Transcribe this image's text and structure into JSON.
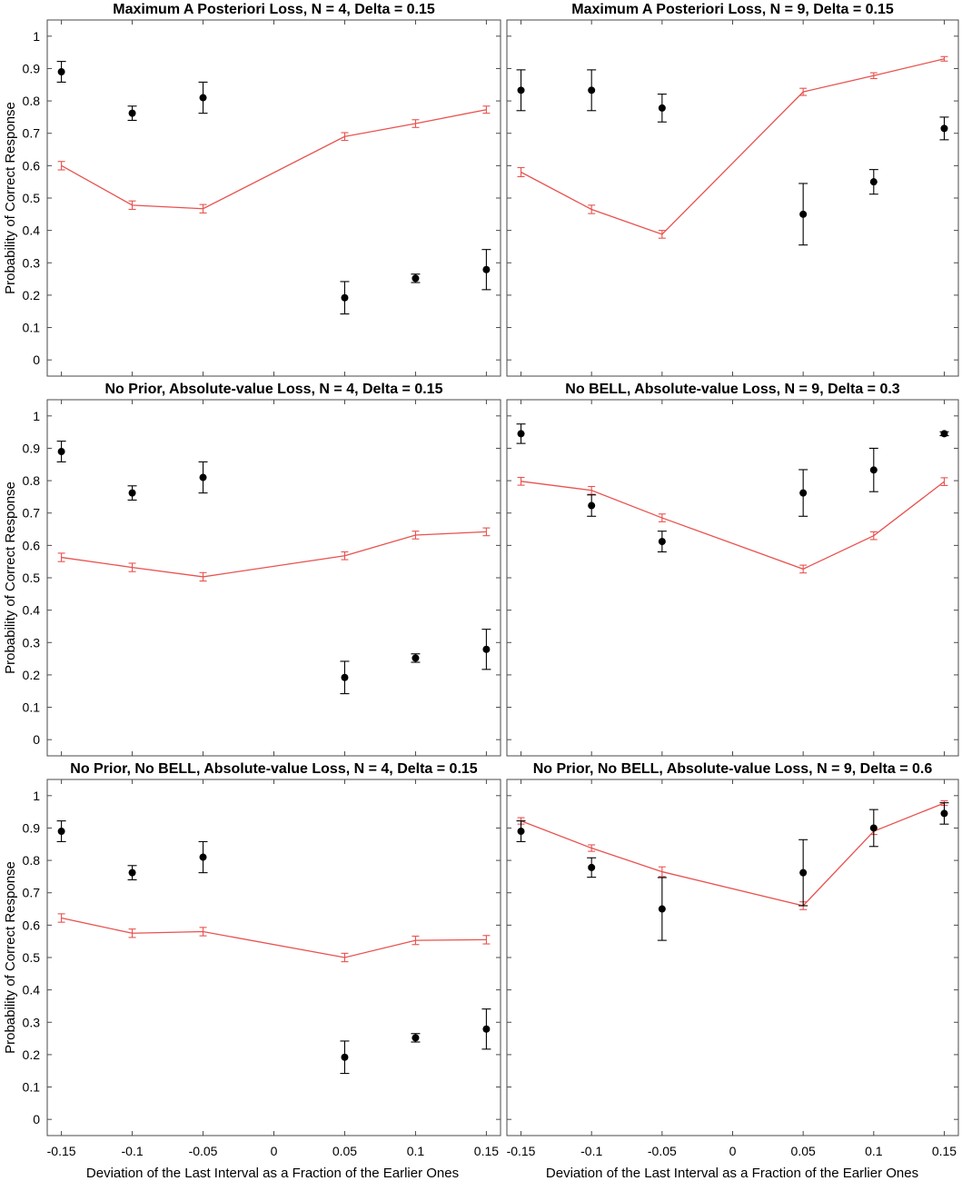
{
  "figure": {
    "ylabel": "Probability of Correct Response",
    "xlabel": "Deviation of the Last Interval as a Fraction of the Earlier Ones",
    "x_ticks": [
      "-0.15",
      "-0.1",
      "-0.05",
      "0",
      "0.05",
      "0.1",
      "0.15"
    ],
    "y_ticks": [
      "0",
      "0.1",
      "0.2",
      "0.3",
      "0.4",
      "0.5",
      "0.6",
      "0.7",
      "0.8",
      "0.9",
      "1"
    ],
    "colors": {
      "model": "#e8524f",
      "data": "#000000",
      "frame": "#4a4a4a"
    }
  },
  "chart_data": [
    {
      "type": "line",
      "title": "Maximum A Posteriori Loss, N = 4, Delta = 0.15",
      "xlim": [
        -0.16,
        0.16
      ],
      "ylim": [
        -0.05,
        1.05
      ],
      "x": [
        -0.15,
        -0.1,
        -0.05,
        0.05,
        0.1,
        0.15
      ],
      "series": [
        {
          "kind": "model",
          "values": [
            0.6,
            0.478,
            0.467,
            0.69,
            0.73,
            0.773
          ],
          "err": [
            0.013,
            0.013,
            0.013,
            0.012,
            0.012,
            0.011
          ]
        },
        {
          "kind": "data",
          "values": [
            0.89,
            0.762,
            0.81,
            0.192,
            0.252,
            0.279
          ],
          "err": [
            0.032,
            0.022,
            0.048,
            0.05,
            0.013,
            0.062
          ]
        }
      ]
    },
    {
      "type": "line",
      "title": "Maximum A Posteriori Loss, N = 9, Delta = 0.15",
      "xlim": [
        -0.16,
        0.16
      ],
      "ylim": [
        -0.05,
        1.05
      ],
      "x": [
        -0.15,
        -0.1,
        -0.05,
        0.05,
        0.1,
        0.15
      ],
      "series": [
        {
          "kind": "model",
          "values": [
            0.58,
            0.465,
            0.388,
            0.828,
            0.878,
            0.93
          ],
          "err": [
            0.014,
            0.013,
            0.012,
            0.011,
            0.009,
            0.007
          ]
        },
        {
          "kind": "data",
          "values": [
            0.833,
            0.833,
            0.778,
            0.45,
            0.55,
            0.715
          ],
          "err": [
            0.063,
            0.063,
            0.043,
            0.095,
            0.038,
            0.035
          ]
        }
      ]
    },
    {
      "type": "line",
      "title": "No Prior, Absolute-value Loss, N = 4, Delta = 0.15",
      "xlim": [
        -0.16,
        0.16
      ],
      "ylim": [
        -0.05,
        1.05
      ],
      "x": [
        -0.15,
        -0.1,
        -0.05,
        0.05,
        0.1,
        0.15
      ],
      "series": [
        {
          "kind": "model",
          "values": [
            0.563,
            0.532,
            0.503,
            0.568,
            0.632,
            0.642
          ],
          "err": [
            0.013,
            0.013,
            0.013,
            0.012,
            0.012,
            0.012
          ]
        },
        {
          "kind": "data",
          "values": [
            0.89,
            0.762,
            0.81,
            0.192,
            0.252,
            0.279
          ],
          "err": [
            0.032,
            0.022,
            0.048,
            0.05,
            0.013,
            0.062
          ]
        }
      ]
    },
    {
      "type": "line",
      "title": "No BELL, Absolute-value Loss, N = 9, Delta = 0.3",
      "xlim": [
        -0.16,
        0.16
      ],
      "ylim": [
        -0.05,
        1.05
      ],
      "x": [
        -0.15,
        -0.1,
        -0.05,
        0.05,
        0.1,
        0.15
      ],
      "series": [
        {
          "kind": "model",
          "values": [
            0.798,
            0.77,
            0.685,
            0.527,
            0.63,
            0.797
          ],
          "err": [
            0.012,
            0.012,
            0.012,
            0.012,
            0.012,
            0.012
          ]
        },
        {
          "kind": "data",
          "values": [
            0.945,
            0.723,
            0.612,
            0.762,
            0.833,
            0.945
          ],
          "err": [
            0.03,
            0.033,
            0.032,
            0.072,
            0.067,
            0.006
          ]
        }
      ]
    },
    {
      "type": "line",
      "title": "No Prior, No BELL, Absolute-value Loss, N = 4, Delta = 0.15",
      "xlim": [
        -0.16,
        0.16
      ],
      "ylim": [
        -0.05,
        1.05
      ],
      "x": [
        -0.15,
        -0.1,
        -0.05,
        0.05,
        0.1,
        0.15
      ],
      "series": [
        {
          "kind": "model",
          "values": [
            0.622,
            0.575,
            0.58,
            0.5,
            0.553,
            0.555
          ],
          "err": [
            0.013,
            0.013,
            0.013,
            0.013,
            0.013,
            0.013
          ]
        },
        {
          "kind": "data",
          "values": [
            0.89,
            0.762,
            0.81,
            0.192,
            0.252,
            0.279
          ],
          "err": [
            0.032,
            0.022,
            0.048,
            0.05,
            0.013,
            0.062
          ]
        }
      ]
    },
    {
      "type": "line",
      "title": "No Prior, No BELL, Absolute-value Loss, N = 9, Delta = 0.6",
      "xlim": [
        -0.16,
        0.16
      ],
      "ylim": [
        -0.05,
        1.05
      ],
      "x": [
        -0.15,
        -0.1,
        -0.05,
        0.05,
        0.1,
        0.15
      ],
      "series": [
        {
          "kind": "model",
          "values": [
            0.922,
            0.838,
            0.765,
            0.66,
            0.89,
            0.977
          ],
          "err": [
            0.01,
            0.01,
            0.015,
            0.012,
            0.01,
            0.007
          ]
        },
        {
          "kind": "data",
          "values": [
            0.89,
            0.778,
            0.65,
            0.762,
            0.9,
            0.945
          ],
          "err": [
            0.032,
            0.03,
            0.097,
            0.102,
            0.057,
            0.033
          ]
        }
      ]
    }
  ]
}
